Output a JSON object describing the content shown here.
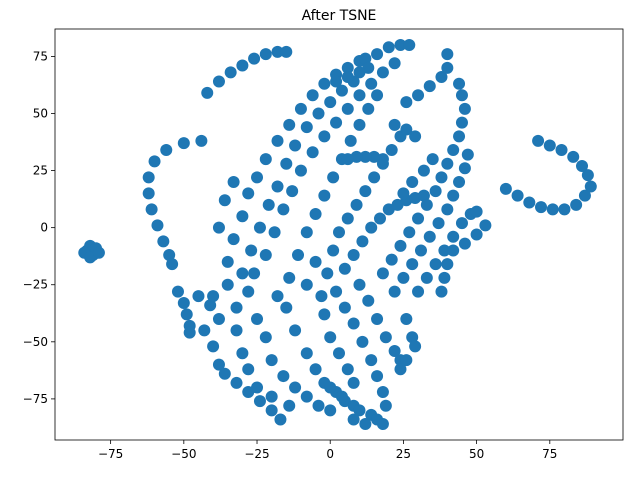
{
  "chart_data": {
    "type": "scatter",
    "title": "After TSNE",
    "xlabel": "",
    "ylabel": "",
    "xlim": [
      -94,
      100
    ],
    "ylim": [
      -93,
      87
    ],
    "x_ticks": [
      -75,
      -50,
      -25,
      0,
      25,
      50,
      75
    ],
    "y_ticks": [
      -75,
      -50,
      -25,
      0,
      25,
      50,
      75
    ],
    "x_tick_labels": [
      "−75",
      "−50",
      "−25",
      "0",
      "25",
      "50",
      "75"
    ],
    "y_tick_labels": [
      "−75",
      "−50",
      "−25",
      "0",
      "25",
      "50",
      "75"
    ],
    "grid": false,
    "legend": "none",
    "marker_color": "#1f77b4",
    "series": [
      {
        "points": [
          [
            -82,
            -8
          ],
          [
            -83,
            -10
          ],
          [
            -81,
            -12
          ],
          [
            -80,
            -9
          ],
          [
            -84,
            -11
          ],
          [
            -82,
            -13
          ],
          [
            -79,
            -11
          ],
          [
            -42,
            59
          ],
          [
            -38,
            64
          ],
          [
            -34,
            68
          ],
          [
            -30,
            71
          ],
          [
            -26,
            74
          ],
          [
            -22,
            76
          ],
          [
            -18,
            77
          ],
          [
            -15,
            77
          ],
          [
            -44,
            38
          ],
          [
            -50,
            37
          ],
          [
            -56,
            34
          ],
          [
            -60,
            29
          ],
          [
            -62,
            22
          ],
          [
            -62,
            15
          ],
          [
            -61,
            8
          ],
          [
            -59,
            1
          ],
          [
            -57,
            -6
          ],
          [
            -55,
            -12
          ],
          [
            -54,
            -16
          ],
          [
            -52,
            -28
          ],
          [
            -50,
            -33
          ],
          [
            -49,
            -38
          ],
          [
            -48,
            -43
          ],
          [
            -48,
            -46
          ],
          [
            -45,
            -30
          ],
          [
            -41,
            -34
          ],
          [
            -43,
            -45
          ],
          [
            -40,
            -52
          ],
          [
            -38,
            -60
          ],
          [
            -36,
            -64
          ],
          [
            -32,
            -68
          ],
          [
            -28,
            -72
          ],
          [
            -24,
            -76
          ],
          [
            -20,
            -80
          ],
          [
            -17,
            -84
          ],
          [
            -40,
            -30
          ],
          [
            -35,
            -25
          ],
          [
            -38,
            -40
          ],
          [
            -32,
            -45
          ],
          [
            -30,
            -55
          ],
          [
            -28,
            -62
          ],
          [
            -25,
            -70
          ],
          [
            -20,
            -74
          ],
          [
            -14,
            -78
          ],
          [
            -35,
            -15
          ],
          [
            -33,
            -5
          ],
          [
            -30,
            5
          ],
          [
            -28,
            15
          ],
          [
            -25,
            22
          ],
          [
            -22,
            30
          ],
          [
            -18,
            38
          ],
          [
            -14,
            45
          ],
          [
            -10,
            52
          ],
          [
            -6,
            58
          ],
          [
            -2,
            63
          ],
          [
            2,
            67
          ],
          [
            6,
            70
          ],
          [
            10,
            73
          ],
          [
            -38,
            0
          ],
          [
            -36,
            12
          ],
          [
            -33,
            20
          ],
          [
            -30,
            -20
          ],
          [
            -27,
            -10
          ],
          [
            -24,
            0
          ],
          [
            -21,
            10
          ],
          [
            -18,
            18
          ],
          [
            -15,
            28
          ],
          [
            -12,
            36
          ],
          [
            -8,
            44
          ],
          [
            -4,
            50
          ],
          [
            0,
            55
          ],
          [
            4,
            60
          ],
          [
            8,
            64
          ],
          [
            -32,
            -35
          ],
          [
            -28,
            -28
          ],
          [
            -25,
            -40
          ],
          [
            -22,
            -48
          ],
          [
            -20,
            -58
          ],
          [
            -16,
            -65
          ],
          [
            -12,
            -70
          ],
          [
            -8,
            -74
          ],
          [
            -4,
            -78
          ],
          [
            0,
            -80
          ],
          [
            -26,
            -20
          ],
          [
            -22,
            -12
          ],
          [
            -19,
            -2
          ],
          [
            -16,
            8
          ],
          [
            -13,
            16
          ],
          [
            -10,
            25
          ],
          [
            -6,
            33
          ],
          [
            -2,
            40
          ],
          [
            2,
            46
          ],
          [
            6,
            52
          ],
          [
            10,
            58
          ],
          [
            14,
            63
          ],
          [
            18,
            68
          ],
          [
            22,
            72
          ],
          [
            -15,
            -35
          ],
          [
            -12,
            -45
          ],
          [
            -8,
            -55
          ],
          [
            -5,
            -62
          ],
          [
            -2,
            -68
          ],
          [
            2,
            -72
          ],
          [
            5,
            -76
          ],
          [
            8,
            -78
          ],
          [
            -18,
            -30
          ],
          [
            -14,
            -22
          ],
          [
            -11,
            -12
          ],
          [
            -8,
            -2
          ],
          [
            -5,
            6
          ],
          [
            -2,
            14
          ],
          [
            1,
            22
          ],
          [
            4,
            30
          ],
          [
            7,
            38
          ],
          [
            10,
            45
          ],
          [
            13,
            52
          ],
          [
            16,
            58
          ],
          [
            12,
            74
          ],
          [
            16,
            76
          ],
          [
            20,
            79
          ],
          [
            24,
            80
          ],
          [
            27,
            80
          ],
          [
            -8,
            -25
          ],
          [
            -5,
            -15
          ],
          [
            -2,
            -38
          ],
          [
            0,
            -48
          ],
          [
            3,
            -55
          ],
          [
            6,
            -62
          ],
          [
            8,
            -68
          ],
          [
            -3,
            -30
          ],
          [
            -1,
            -20
          ],
          [
            1,
            -10
          ],
          [
            3,
            -2
          ],
          [
            6,
            4
          ],
          [
            9,
            10
          ],
          [
            12,
            16
          ],
          [
            15,
            22
          ],
          [
            18,
            28
          ],
          [
            21,
            34
          ],
          [
            24,
            40
          ],
          [
            2,
            -28
          ],
          [
            5,
            -35
          ],
          [
            8,
            -42
          ],
          [
            11,
            -50
          ],
          [
            14,
            -58
          ],
          [
            16,
            -65
          ],
          [
            18,
            -72
          ],
          [
            19,
            -78
          ],
          [
            14,
            -82
          ],
          [
            10,
            -80
          ],
          [
            0,
            -70
          ],
          [
            4,
            -74
          ],
          [
            8,
            -84
          ],
          [
            12,
            -86
          ],
          [
            16,
            -84
          ],
          [
            18,
            -86
          ],
          [
            5,
            -18
          ],
          [
            8,
            -12
          ],
          [
            11,
            -6
          ],
          [
            14,
            0
          ],
          [
            17,
            4
          ],
          [
            20,
            8
          ],
          [
            23,
            10
          ],
          [
            26,
            12
          ],
          [
            29,
            13
          ],
          [
            32,
            14
          ],
          [
            10,
            -25
          ],
          [
            13,
            -32
          ],
          [
            16,
            -40
          ],
          [
            19,
            -48
          ],
          [
            22,
            -54
          ],
          [
            24,
            -58
          ],
          [
            18,
            -20
          ],
          [
            21,
            -14
          ],
          [
            24,
            -8
          ],
          [
            27,
            -2
          ],
          [
            30,
            4
          ],
          [
            33,
            10
          ],
          [
            36,
            16
          ],
          [
            38,
            22
          ],
          [
            40,
            28
          ],
          [
            42,
            34
          ],
          [
            44,
            40
          ],
          [
            45,
            46
          ],
          [
            46,
            52
          ],
          [
            45,
            58
          ],
          [
            44,
            63
          ],
          [
            22,
            -28
          ],
          [
            25,
            -22
          ],
          [
            28,
            -16
          ],
          [
            31,
            -10
          ],
          [
            34,
            -4
          ],
          [
            37,
            2
          ],
          [
            40,
            8
          ],
          [
            42,
            14
          ],
          [
            44,
            20
          ],
          [
            46,
            26
          ],
          [
            47,
            32
          ],
          [
            26,
            -40
          ],
          [
            28,
            -48
          ],
          [
            29,
            -52
          ],
          [
            26,
            -58
          ],
          [
            24,
            -62
          ],
          [
            30,
            -28
          ],
          [
            33,
            -22
          ],
          [
            36,
            -16
          ],
          [
            39,
            -10
          ],
          [
            42,
            -4
          ],
          [
            45,
            2
          ],
          [
            48,
            6
          ],
          [
            50,
            7
          ],
          [
            38,
            -28
          ],
          [
            39,
            -22
          ],
          [
            40,
            -16
          ],
          [
            42,
            -10
          ],
          [
            46,
            -7
          ],
          [
            50,
            -3
          ],
          [
            53,
            1
          ],
          [
            35,
            30
          ],
          [
            32,
            25
          ],
          [
            28,
            20
          ],
          [
            25,
            15
          ],
          [
            22,
            45
          ],
          [
            26,
            43
          ],
          [
            29,
            40
          ],
          [
            26,
            55
          ],
          [
            30,
            58
          ],
          [
            34,
            62
          ],
          [
            38,
            66
          ],
          [
            40,
            70
          ],
          [
            40,
            76
          ],
          [
            18,
            30
          ],
          [
            15,
            31
          ],
          [
            12,
            31
          ],
          [
            9,
            31
          ],
          [
            6,
            30
          ],
          [
            13,
            70
          ],
          [
            10,
            68
          ],
          [
            6,
            66
          ],
          [
            2,
            64
          ],
          [
            60,
            17
          ],
          [
            64,
            14
          ],
          [
            68,
            11
          ],
          [
            72,
            9
          ],
          [
            76,
            8
          ],
          [
            80,
            8
          ],
          [
            84,
            10
          ],
          [
            87,
            14
          ],
          [
            89,
            18
          ],
          [
            88,
            23
          ],
          [
            86,
            27
          ],
          [
            83,
            31
          ],
          [
            79,
            34
          ],
          [
            75,
            36
          ],
          [
            71,
            38
          ]
        ]
      }
    ]
  }
}
